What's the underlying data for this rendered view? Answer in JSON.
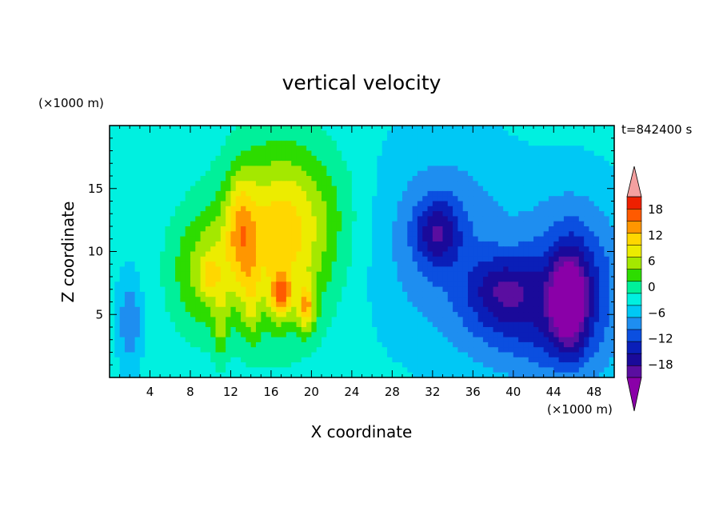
{
  "chart_data": {
    "type": "heatmap",
    "title": "vertical velocity",
    "xlabel": "X coordinate",
    "ylabel": "Z coordinate",
    "x_unit": "(×1000 m)",
    "y_unit": "(×1000 m)",
    "time_label": "t=842400 s",
    "xlim": [
      0,
      50
    ],
    "ylim": [
      0,
      20
    ],
    "x_ticks": [
      4,
      8,
      12,
      16,
      20,
      24,
      28,
      32,
      36,
      40,
      44,
      48
    ],
    "x_tick_labels": [
      "4",
      "8",
      "12",
      "16",
      "20",
      "24",
      "28",
      "32",
      "36",
      "40",
      "44",
      "48"
    ],
    "y_ticks": [
      5,
      10,
      15
    ],
    "y_tick_labels": [
      "5",
      "10",
      "15"
    ],
    "colorbar": {
      "levels": [
        -21,
        -18,
        -15,
        -12,
        -9,
        -6,
        -3,
        0,
        3,
        6,
        9,
        12,
        15,
        18,
        21
      ],
      "tick_values": [
        -18,
        -12,
        -6,
        0,
        6,
        12,
        18
      ],
      "tick_labels": [
        "−18",
        "−12",
        "−6",
        "0",
        "6",
        "12",
        "18"
      ],
      "colors": [
        "#5a0ea0",
        "#1a0a9a",
        "#0a1fb8",
        "#0b4fe0",
        "#1e8ef0",
        "#00c8f5",
        "#00f0e0",
        "#00f09a",
        "#2ddc00",
        "#a4e800",
        "#ecec00",
        "#ffd700",
        "#ff9600",
        "#ff5a00",
        "#ee2000"
      ],
      "under_color": "#8a00a8",
      "over_color": "#f4a0a0"
    },
    "background_value": -2,
    "features": [
      {
        "x": 2,
        "z": 4.5,
        "value": -7,
        "sx": 0.8,
        "sz": 2.5
      },
      {
        "x": 9.5,
        "z": 8.5,
        "value": 9,
        "sx": 2.5,
        "sz": 3.5
      },
      {
        "x": 13,
        "z": 12,
        "value": 9,
        "sx": 1.0,
        "sz": 3.0
      },
      {
        "x": 17,
        "z": 10,
        "value": 8,
        "sx": 3.5,
        "sz": 5.0
      },
      {
        "x": 17,
        "z": 6.5,
        "value": 13,
        "sx": 0.7,
        "sz": 1.2
      },
      {
        "x": 19.5,
        "z": 5.5,
        "value": 12,
        "sx": 0.6,
        "sz": 1.3
      },
      {
        "x": 10,
        "z": 8,
        "value": 6,
        "sx": 0.6,
        "sz": 1.0
      },
      {
        "x": 14,
        "z": 6,
        "value": 5,
        "sx": 0.6,
        "sz": 2.5
      },
      {
        "x": 11,
        "z": 4,
        "value": 5,
        "sx": 0.5,
        "sz": 2.0
      },
      {
        "x": 16,
        "z": 12,
        "value": 6,
        "sx": 3.5,
        "sz": 5.0
      },
      {
        "x": 20,
        "z": 13,
        "value": 4,
        "sx": 4.0,
        "sz": 4.0
      },
      {
        "x": 33,
        "z": 11,
        "value": -7,
        "sx": 5.0,
        "sz": 5.5
      },
      {
        "x": 32.5,
        "z": 11.5,
        "value": -10,
        "sx": 1.5,
        "sz": 1.8
      },
      {
        "x": 46,
        "z": 7,
        "value": -12,
        "sx": 3.5,
        "sz": 5.0
      },
      {
        "x": 45.5,
        "z": 6,
        "value": -16,
        "sx": 1.2,
        "sz": 2.5
      },
      {
        "x": 39,
        "z": 7,
        "value": -9,
        "sx": 2.5,
        "sz": 2.0
      },
      {
        "x": 40,
        "z": 4,
        "value": -6,
        "sx": 4.0,
        "sz": 3.0
      }
    ]
  }
}
